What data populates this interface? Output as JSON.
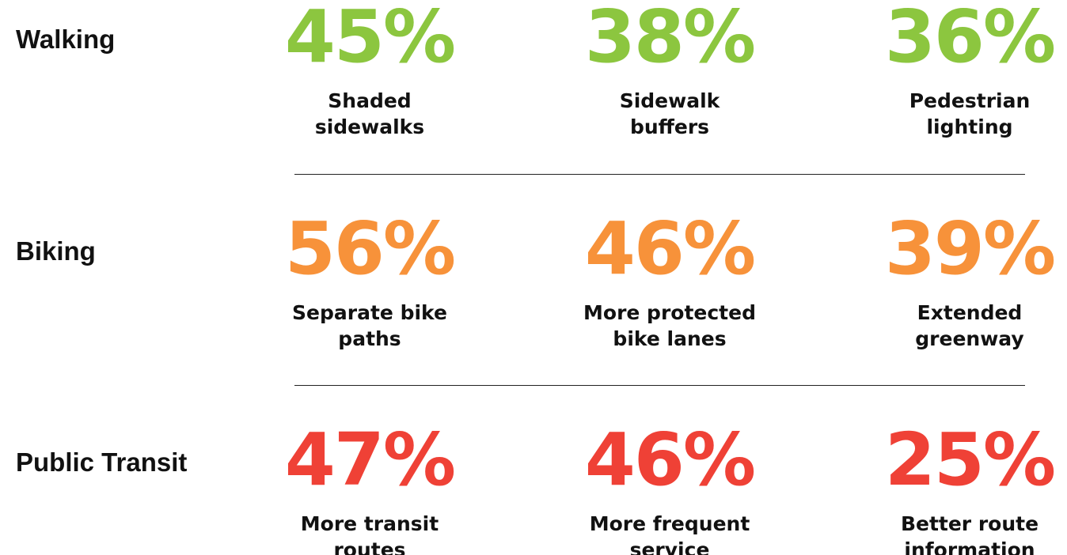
{
  "rows": [
    {
      "title": "Walking",
      "color": "#8cc63f",
      "items": [
        {
          "value": "45%",
          "label": [
            "Shaded",
            "sidewalks"
          ]
        },
        {
          "value": "38%",
          "label": [
            "Sidewalk",
            "buffers"
          ]
        },
        {
          "value": "36%",
          "label": [
            "Pedestrian",
            "lighting"
          ]
        }
      ]
    },
    {
      "title": "Biking",
      "color": "#f7923a",
      "items": [
        {
          "value": "56%",
          "label": [
            "Separate bike",
            "paths"
          ]
        },
        {
          "value": "46%",
          "label": [
            "More protected",
            "bike lanes"
          ]
        },
        {
          "value": "39%",
          "label": [
            "Extended",
            "greenway"
          ]
        }
      ]
    },
    {
      "title": "Public Transit",
      "color": "#ef4136",
      "items": [
        {
          "value": "47%",
          "label": [
            "More transit",
            "routes"
          ]
        },
        {
          "value": "46%",
          "label": [
            "More frequent",
            "service"
          ]
        },
        {
          "value": "25%",
          "label": [
            "Better route",
            "information"
          ]
        }
      ]
    }
  ]
}
